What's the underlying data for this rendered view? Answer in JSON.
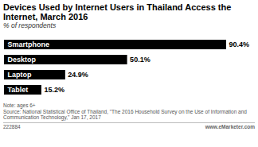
{
  "chart_data": {
    "type": "bar",
    "orientation": "horizontal",
    "title": "Devices Used by Internet Users in Thailand Access the Internet, March 2016",
    "subtitle": "% of respondents",
    "categories": [
      "Smartphone",
      "Desktop",
      "Laptop",
      "Tablet"
    ],
    "values": [
      90.4,
      50.1,
      24.9,
      15.2
    ],
    "value_labels": [
      "90.4%",
      "50.1%",
      "24.9%",
      "15.2%"
    ],
    "color": "#000000",
    "data_labels": true,
    "tick_labels": false,
    "footnotes": [
      "Note: ages 6+",
      "Source: National Statistical Office of Thailand, \"The 2016 Household Survey on the Use of Information and Communication Technology,\" Jan 17, 2017"
    ],
    "footer_left": "222884",
    "footer_right": "www.eMarketer.com"
  }
}
